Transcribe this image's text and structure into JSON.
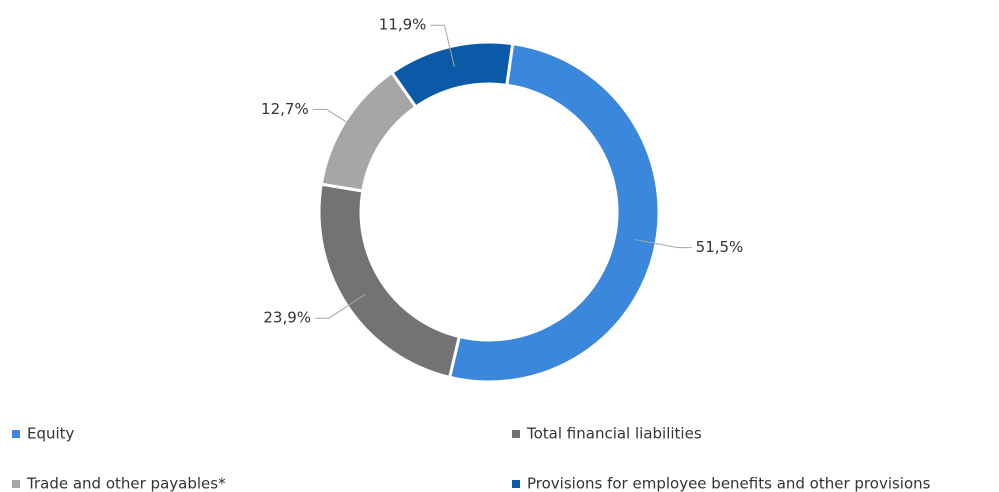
{
  "chart_data": {
    "type": "donut",
    "categories": [
      "Equity",
      "Total financial liabilities",
      "Trade and other payables*",
      "Provisions for employee benefits and other provisions"
    ],
    "values": [
      51.5,
      23.9,
      12.7,
      11.9
    ],
    "value_labels": [
      "51,5%",
      "23,9%",
      "12,7%",
      "11,9%"
    ],
    "colors": [
      "#3a87db",
      "#737373",
      "#a6a6a6",
      "#0a5aa8"
    ],
    "legend": "bottom"
  }
}
